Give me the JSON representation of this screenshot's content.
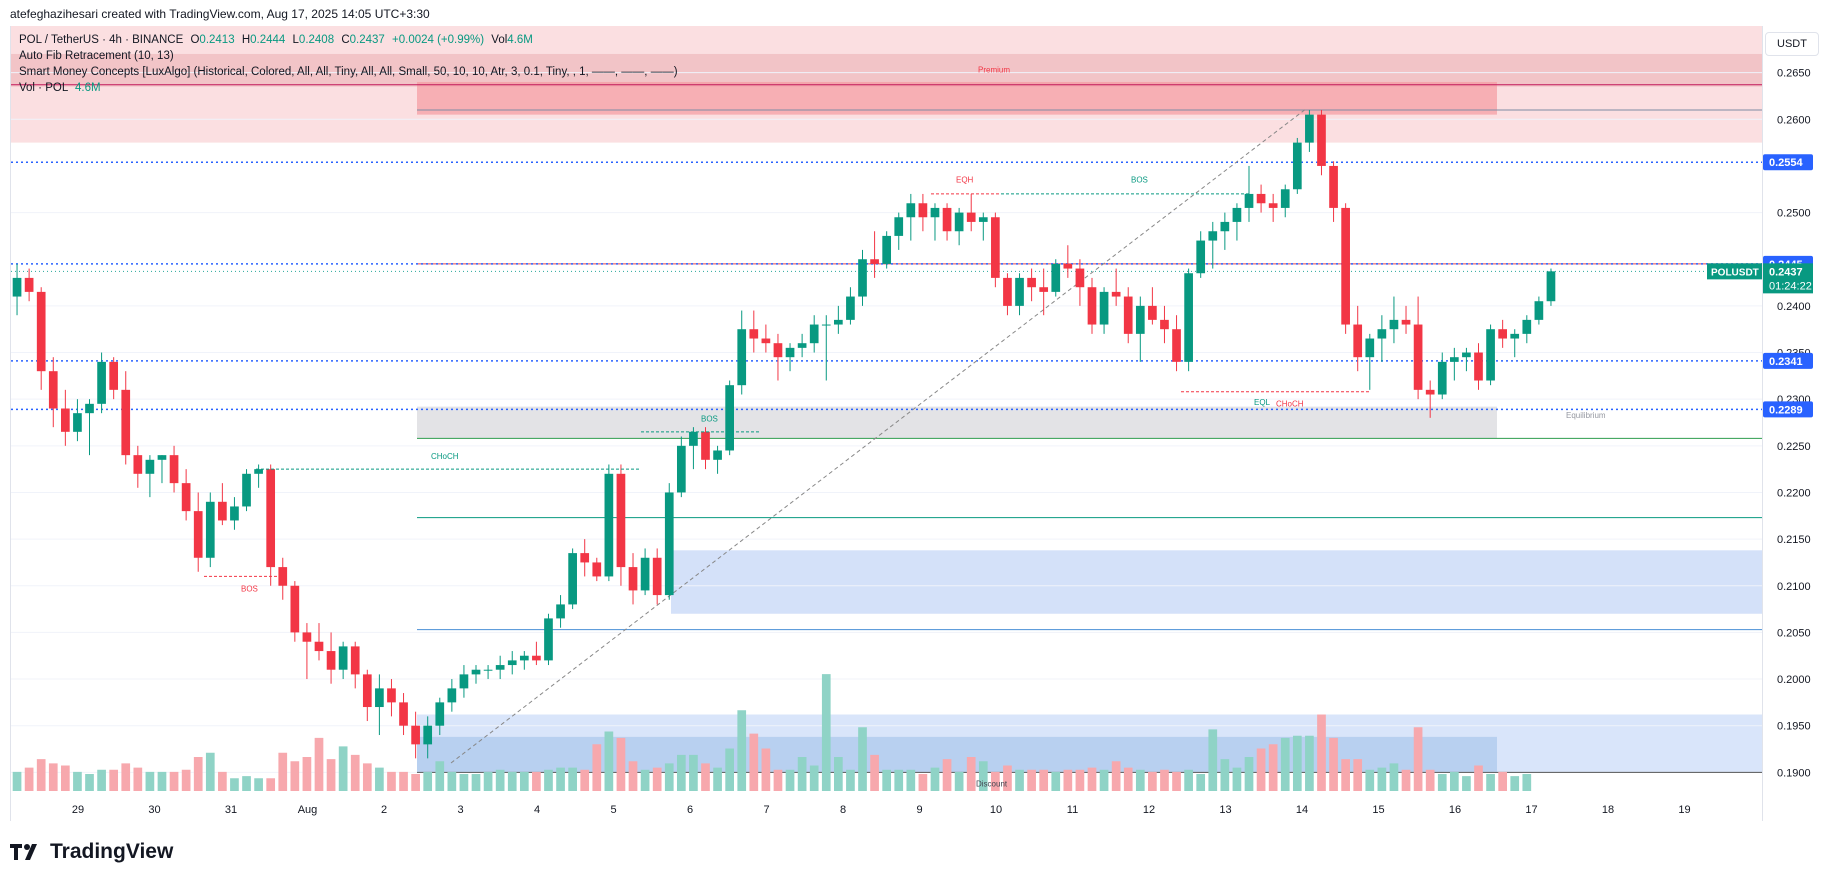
{
  "header": {
    "credit": "atefeghazihesari created with TradingView.com, Aug 17, 2025 14:05 UTC+3:30"
  },
  "legend": {
    "symbol_line": "POL / TetherUS · 4h · BINANCE",
    "o_label": "O",
    "o": "0.2413",
    "h_label": "H",
    "h": "0.2444",
    "l_label": "L",
    "l": "0.2408",
    "c_label": "C",
    "c": "0.2437",
    "change": "+0.0024 (+0.99%)",
    "vol_label": "Vol",
    "vol": "4.6M",
    "fib": "Auto Fib Retracement (10, 13)",
    "smc": "Smart Money Concepts [LuxAlgo] (Historical, Colored, All, All, Tiny, All, All, Small, 50, 10, 10, Atr, 3, 0.1, Tiny, , 1, ——, ——, ——)",
    "vol_line_label": "Vol · POL",
    "vol_line_value": "4.6M"
  },
  "currency": "USDT",
  "footer": {
    "brand": "TradingView"
  },
  "colors": {
    "up": "#089981",
    "down": "#f23645",
    "up_vol": "#8fd3c6",
    "down_vol": "#f7a8ad",
    "blue_line": "#2962ff",
    "premium": "#f7c5c8",
    "discount": "#c9daf8",
    "equilibrium": "#d9dade"
  },
  "chart_data": {
    "type": "candlestick",
    "symbol": "POL / TetherUS",
    "interval": "4h",
    "ylim": [
      0.188,
      0.27
    ],
    "y_ticks": [
      "0.2650",
      "0.2600",
      "0.2500",
      "0.2400",
      "0.2350",
      "0.2300",
      "0.2250",
      "0.2200",
      "0.2150",
      "0.2100",
      "0.2050",
      "0.2000",
      "0.1950",
      "0.1900"
    ],
    "x_ticks": [
      "29",
      "30",
      "31",
      "Aug",
      "2",
      "3",
      "4",
      "5",
      "6",
      "7",
      "8",
      "9",
      "10",
      "11",
      "12",
      "13",
      "14",
      "15",
      "16",
      "17",
      "18",
      "19"
    ],
    "price_labels": [
      {
        "text": "0.2554",
        "value": 0.2554,
        "color": "#2962ff"
      },
      {
        "text": "0.2445",
        "value": 0.2445,
        "color": "#2962ff"
      },
      {
        "text": "0.2341",
        "value": 0.2341,
        "color": "#2962ff"
      },
      {
        "text": "0.2289",
        "value": 0.2289,
        "color": "#2962ff"
      }
    ],
    "last_price": {
      "symbol": "POLUSDT",
      "price": "0.2437",
      "countdown": "01:24:22",
      "value": 0.2437
    },
    "annotations": [
      "Premium",
      "Equilibrium",
      "Discount",
      "EQH",
      "EQL",
      "BOS",
      "BOS",
      "BOS",
      "CHoCH",
      "CHoCH"
    ],
    "ohlc": [
      [
        0.241,
        0.2445,
        0.239,
        0.243
      ],
      [
        0.243,
        0.244,
        0.2405,
        0.2415
      ],
      [
        0.2415,
        0.242,
        0.231,
        0.233
      ],
      [
        0.233,
        0.2345,
        0.227,
        0.229
      ],
      [
        0.229,
        0.231,
        0.225,
        0.2265
      ],
      [
        0.2265,
        0.23,
        0.2255,
        0.2285
      ],
      [
        0.2285,
        0.23,
        0.224,
        0.2295
      ],
      [
        0.2295,
        0.235,
        0.2285,
        0.234
      ],
      [
        0.234,
        0.2345,
        0.23,
        0.231
      ],
      [
        0.231,
        0.233,
        0.223,
        0.224
      ],
      [
        0.224,
        0.225,
        0.2205,
        0.222
      ],
      [
        0.222,
        0.224,
        0.2195,
        0.2235
      ],
      [
        0.2235,
        0.224,
        0.221,
        0.224
      ],
      [
        0.224,
        0.225,
        0.22,
        0.221
      ],
      [
        0.221,
        0.2225,
        0.217,
        0.218
      ],
      [
        0.218,
        0.22,
        0.2115,
        0.213
      ],
      [
        0.213,
        0.22,
        0.212,
        0.219
      ],
      [
        0.219,
        0.221,
        0.2165,
        0.217
      ],
      [
        0.217,
        0.2195,
        0.216,
        0.2185
      ],
      [
        0.2185,
        0.2225,
        0.218,
        0.222
      ],
      [
        0.222,
        0.223,
        0.2205,
        0.2225
      ],
      [
        0.2225,
        0.223,
        0.21,
        0.212
      ],
      [
        0.212,
        0.213,
        0.2085,
        0.21
      ],
      [
        0.21,
        0.2105,
        0.204,
        0.205
      ],
      [
        0.205,
        0.206,
        0.2,
        0.204
      ],
      [
        0.204,
        0.206,
        0.202,
        0.203
      ],
      [
        0.203,
        0.205,
        0.1995,
        0.201
      ],
      [
        0.201,
        0.204,
        0.2,
        0.2035
      ],
      [
        0.2035,
        0.204,
        0.199,
        0.2005
      ],
      [
        0.2005,
        0.201,
        0.1955,
        0.197
      ],
      [
        0.197,
        0.2005,
        0.194,
        0.199
      ],
      [
        0.199,
        0.2,
        0.196,
        0.1975
      ],
      [
        0.1975,
        0.1985,
        0.194,
        0.195
      ],
      [
        0.195,
        0.1965,
        0.1915,
        0.193
      ],
      [
        0.193,
        0.196,
        0.1915,
        0.195
      ],
      [
        0.195,
        0.198,
        0.194,
        0.1975
      ],
      [
        0.1975,
        0.2,
        0.1965,
        0.199
      ],
      [
        0.199,
        0.2015,
        0.198,
        0.2005
      ],
      [
        0.2005,
        0.2015,
        0.1995,
        0.201
      ],
      [
        0.201,
        0.2015,
        0.2,
        0.201
      ],
      [
        0.201,
        0.2025,
        0.2,
        0.2015
      ],
      [
        0.2015,
        0.203,
        0.2005,
        0.202
      ],
      [
        0.202,
        0.203,
        0.201,
        0.2025
      ],
      [
        0.2025,
        0.204,
        0.2015,
        0.202
      ],
      [
        0.202,
        0.207,
        0.2015,
        0.2065
      ],
      [
        0.2065,
        0.209,
        0.2055,
        0.208
      ],
      [
        0.208,
        0.214,
        0.2075,
        0.2135
      ],
      [
        0.2135,
        0.215,
        0.211,
        0.2125
      ],
      [
        0.2125,
        0.213,
        0.2105,
        0.211
      ],
      [
        0.211,
        0.223,
        0.2105,
        0.222
      ],
      [
        0.222,
        0.223,
        0.21,
        0.212
      ],
      [
        0.212,
        0.2135,
        0.208,
        0.2095
      ],
      [
        0.2095,
        0.214,
        0.209,
        0.213
      ],
      [
        0.213,
        0.214,
        0.208,
        0.209
      ],
      [
        0.209,
        0.221,
        0.2085,
        0.22
      ],
      [
        0.22,
        0.226,
        0.2195,
        0.225
      ],
      [
        0.225,
        0.227,
        0.2225,
        0.2265
      ],
      [
        0.2265,
        0.227,
        0.2225,
        0.2235
      ],
      [
        0.2235,
        0.225,
        0.222,
        0.2245
      ],
      [
        0.2245,
        0.232,
        0.224,
        0.2315
      ],
      [
        0.2315,
        0.2395,
        0.2305,
        0.2375
      ],
      [
        0.2375,
        0.2395,
        0.235,
        0.2365
      ],
      [
        0.2365,
        0.238,
        0.235,
        0.236
      ],
      [
        0.236,
        0.237,
        0.232,
        0.2345
      ],
      [
        0.2345,
        0.236,
        0.233,
        0.2355
      ],
      [
        0.2355,
        0.237,
        0.2345,
        0.236
      ],
      [
        0.236,
        0.239,
        0.235,
        0.238
      ],
      [
        0.238,
        0.239,
        0.232,
        0.238
      ],
      [
        0.238,
        0.24,
        0.237,
        0.2385
      ],
      [
        0.2385,
        0.242,
        0.238,
        0.241
      ],
      [
        0.241,
        0.246,
        0.24,
        0.245
      ],
      [
        0.245,
        0.248,
        0.243,
        0.2445
      ],
      [
        0.2445,
        0.248,
        0.244,
        0.2475
      ],
      [
        0.2475,
        0.25,
        0.246,
        0.2495
      ],
      [
        0.2495,
        0.252,
        0.247,
        0.251
      ],
      [
        0.251,
        0.252,
        0.248,
        0.2495
      ],
      [
        0.2495,
        0.251,
        0.247,
        0.2505
      ],
      [
        0.2505,
        0.251,
        0.247,
        0.248
      ],
      [
        0.248,
        0.2505,
        0.2465,
        0.25
      ],
      [
        0.25,
        0.252,
        0.248,
        0.249
      ],
      [
        0.249,
        0.25,
        0.247,
        0.2495
      ],
      [
        0.2495,
        0.25,
        0.242,
        0.243
      ],
      [
        0.243,
        0.2435,
        0.239,
        0.24
      ],
      [
        0.24,
        0.2435,
        0.239,
        0.243
      ],
      [
        0.243,
        0.244,
        0.2405,
        0.242
      ],
      [
        0.242,
        0.244,
        0.239,
        0.2415
      ],
      [
        0.2415,
        0.245,
        0.241,
        0.2445
      ],
      [
        0.2445,
        0.2465,
        0.243,
        0.244
      ],
      [
        0.244,
        0.245,
        0.24,
        0.242
      ],
      [
        0.242,
        0.243,
        0.237,
        0.238
      ],
      [
        0.238,
        0.242,
        0.237,
        0.2415
      ],
      [
        0.2415,
        0.244,
        0.24,
        0.241
      ],
      [
        0.241,
        0.242,
        0.236,
        0.237
      ],
      [
        0.237,
        0.241,
        0.234,
        0.24
      ],
      [
        0.24,
        0.242,
        0.238,
        0.2385
      ],
      [
        0.2385,
        0.24,
        0.236,
        0.2375
      ],
      [
        0.2375,
        0.239,
        0.233,
        0.234
      ],
      [
        0.234,
        0.244,
        0.233,
        0.2435
      ],
      [
        0.2435,
        0.248,
        0.243,
        0.247
      ],
      [
        0.247,
        0.249,
        0.244,
        0.248
      ],
      [
        0.248,
        0.25,
        0.246,
        0.249
      ],
      [
        0.249,
        0.251,
        0.247,
        0.2505
      ],
      [
        0.2505,
        0.255,
        0.249,
        0.252
      ],
      [
        0.252,
        0.253,
        0.25,
        0.251
      ],
      [
        0.251,
        0.252,
        0.249,
        0.2505
      ],
      [
        0.2505,
        0.253,
        0.2495,
        0.2525
      ],
      [
        0.2525,
        0.258,
        0.252,
        0.2575
      ],
      [
        0.2575,
        0.261,
        0.2565,
        0.2605
      ],
      [
        0.2605,
        0.261,
        0.254,
        0.255
      ],
      [
        0.255,
        0.2555,
        0.249,
        0.2505
      ],
      [
        0.2505,
        0.251,
        0.237,
        0.238
      ],
      [
        0.238,
        0.24,
        0.233,
        0.2345
      ],
      [
        0.2345,
        0.237,
        0.231,
        0.2365
      ],
      [
        0.2365,
        0.239,
        0.234,
        0.2375
      ],
      [
        0.2375,
        0.241,
        0.236,
        0.2385
      ],
      [
        0.2385,
        0.24,
        0.237,
        0.238
      ],
      [
        0.238,
        0.241,
        0.23,
        0.231
      ],
      [
        0.231,
        0.232,
        0.228,
        0.2305
      ],
      [
        0.2305,
        0.235,
        0.23,
        0.234
      ],
      [
        0.234,
        0.2355,
        0.232,
        0.2345
      ],
      [
        0.2345,
        0.2355,
        0.233,
        0.235
      ],
      [
        0.235,
        0.236,
        0.231,
        0.232
      ],
      [
        0.232,
        0.238,
        0.2315,
        0.2375
      ],
      [
        0.2375,
        0.2385,
        0.2355,
        0.2365
      ],
      [
        0.2365,
        0.2375,
        0.2345,
        0.237
      ],
      [
        0.237,
        0.239,
        0.236,
        0.2385
      ],
      [
        0.2385,
        0.241,
        0.238,
        0.2405
      ],
      [
        0.2405,
        0.244,
        0.24,
        0.2437
      ]
    ],
    "volume": [
      0.9,
      1.1,
      1.5,
      1.3,
      1.2,
      0.9,
      0.8,
      1.0,
      1.0,
      1.3,
      1.1,
      0.9,
      0.9,
      0.9,
      1.0,
      1.6,
      1.8,
      0.9,
      0.6,
      0.7,
      0.6,
      0.6,
      1.8,
      1.4,
      1.6,
      2.5,
      1.5,
      2.1,
      1.7,
      1.3,
      1.1,
      0.9,
      0.9,
      0.8,
      0.9,
      1.4,
      0.9,
      0.8,
      0.8,
      0.9,
      1.0,
      0.9,
      0.9,
      0.9,
      1.0,
      1.1,
      1.1,
      1.0,
      2.2,
      2.8,
      2.5,
      1.4,
      1.0,
      1.1,
      1.3,
      1.7,
      1.7,
      1.3,
      1.1,
      2.0,
      3.8,
      2.7,
      2.0,
      1.0,
      1.0,
      1.6,
      1.2,
      5.5,
      1.6,
      1.0,
      3.0,
      1.7,
      1.0,
      1.0,
      1.0,
      0.8,
      1.1,
      1.5,
      0.9,
      1.6,
      1.4,
      0.9,
      1.2,
      1.0,
      1.0,
      1.0,
      0.9,
      1.0,
      1.0,
      1.1,
      1.0,
      1.4,
      1.1,
      1.0,
      0.9,
      1.0,
      0.9,
      1.0,
      0.8,
      2.9,
      1.5,
      1.1,
      1.6,
      2.0,
      2.2,
      2.5,
      2.6,
      2.6,
      3.6,
      2.5,
      1.5,
      1.5,
      1.0,
      1.1,
      1.3,
      1.0,
      3.0,
      1.0,
      0.8,
      0.9,
      0.7,
      1.2,
      0.8,
      0.9,
      0.7,
      0.8
    ],
    "volume_max": 8.0
  }
}
